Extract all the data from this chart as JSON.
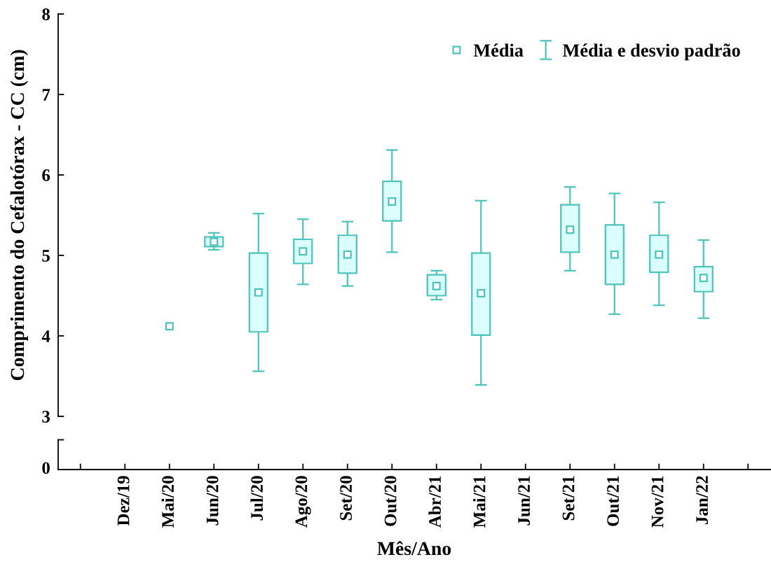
{
  "chart_data": {
    "type": "bar",
    "categories": [
      null,
      "Dez/19",
      "Mai/20",
      "Jun/20",
      "Jul/20",
      "Ago/20",
      "Set/20",
      "Out/20",
      "Abr/21",
      "Mai/21",
      "Jun/21",
      "Set/21",
      "Out/21",
      "Nov/21",
      "Jan/22",
      null
    ],
    "xlabel": "Mês/Ano",
    "ylabel": "Comprimento do Cefalotórax - CC (cm)",
    "ylim": [
      3,
      8
    ],
    "yticks": [
      3,
      4,
      5,
      6,
      7,
      8
    ],
    "legend": "top right",
    "annotations": [
      "0"
    ],
    "series": [
      {
        "color": "#4cc4bc",
        "base": [
          null,
          null,
          null,
          5.11,
          4.05,
          4.9,
          4.78,
          5.43,
          4.5,
          4.01,
          null,
          5.04,
          4.64,
          4.79,
          4.55,
          null
        ],
        "values": [
          null,
          null,
          null,
          0.12,
          0.98,
          0.3,
          0.47,
          0.49,
          0.26,
          1.02,
          null,
          0.59,
          0.74,
          0.46,
          0.31,
          null
        ]
      },
      {
        "type": "scatter",
        "name": "Média",
        "color": "#4cc4bc",
        "marker": "square",
        "values": [
          null,
          null,
          4.12,
          null,
          null,
          null,
          null,
          null,
          null,
          null,
          null,
          null,
          null,
          null,
          null,
          null
        ]
      },
      {
        "type": "scatter",
        "name": "Média e desvio padrão",
        "color": "#4cc4bc",
        "marker": "square",
        "values": [
          null,
          null,
          null,
          5.17,
          4.54,
          5.05,
          5.01,
          5.67,
          4.62,
          4.53,
          null,
          5.32,
          5.01,
          5.01,
          4.72,
          null
        ],
        "errors": [
          null,
          null,
          null,
          [
            5.07,
            5.28
          ],
          [
            3.56,
            5.52
          ],
          [
            4.64,
            5.45
          ],
          [
            4.62,
            5.42
          ],
          [
            5.04,
            6.31
          ],
          [
            4.45,
            4.81
          ],
          [
            3.39,
            5.68
          ],
          null,
          [
            4.81,
            5.85
          ],
          [
            4.27,
            5.77
          ],
          [
            4.38,
            5.66
          ],
          [
            4.22,
            5.19
          ],
          null
        ]
      }
    ]
  }
}
